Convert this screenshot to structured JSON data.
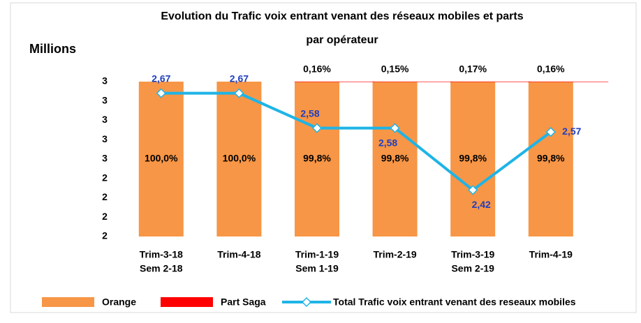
{
  "chart_data": {
    "type": "bar-line",
    "title": [
      "Evolution du Trafic voix entrant venant des réseaux  mobiles  et parts",
      "par opérateur"
    ],
    "y_label": "Millions",
    "categories": [
      [
        "Trim-3-18",
        "Sem 2-18"
      ],
      [
        "Trim-4-18"
      ],
      [
        "Trim-1-19",
        "Sem 1-19"
      ],
      [
        "Trim-2-19"
      ],
      [
        "Trim-3-19",
        "Sem 2-19"
      ],
      [
        "Trim-4-19"
      ]
    ],
    "ylim": [
      2.3,
      2.7
    ],
    "yticks": [
      {
        "value": 2.3,
        "label": "2"
      },
      {
        "value": 2.35,
        "label": "2"
      },
      {
        "value": 2.4,
        "label": "2"
      },
      {
        "value": 2.45,
        "label": "2"
      },
      {
        "value": 2.5,
        "label": "3"
      },
      {
        "value": 2.55,
        "label": "3"
      },
      {
        "value": 2.6,
        "label": "3"
      },
      {
        "value": 2.65,
        "label": "3"
      },
      {
        "value": 2.7,
        "label": "3"
      }
    ],
    "y2lim": [
      0,
      100
    ],
    "series": [
      {
        "name": "Orange",
        "color": "#f79646",
        "axis": "y2",
        "kind": "bar",
        "values": [
          100.0,
          100.0,
          99.8,
          99.8,
          99.8,
          99.8
        ],
        "value_labels": [
          "100,0%",
          "100,0%",
          "99,8%",
          "99,8%",
          "99,8%",
          "99,8%"
        ]
      },
      {
        "name": "Part Saga",
        "color": "#ff0000",
        "axis": "y2",
        "kind": "bar",
        "values": [
          0,
          0,
          0.16,
          0.15,
          0.17,
          0.16
        ],
        "value_labels": [
          null,
          null,
          "0,16%",
          "0,15%",
          "0,17%",
          "0,16%"
        ]
      },
      {
        "name": "Total Trafic voix entrant venant des reseaux mobiles",
        "color": "#1fb4e6",
        "kind": "line",
        "values": [
          2.67,
          2.67,
          2.58,
          2.58,
          2.42,
          2.57
        ],
        "value_labels": [
          "2,67",
          "2,67",
          "2,58",
          "2,58",
          "2,42",
          "2,57"
        ]
      }
    ]
  }
}
